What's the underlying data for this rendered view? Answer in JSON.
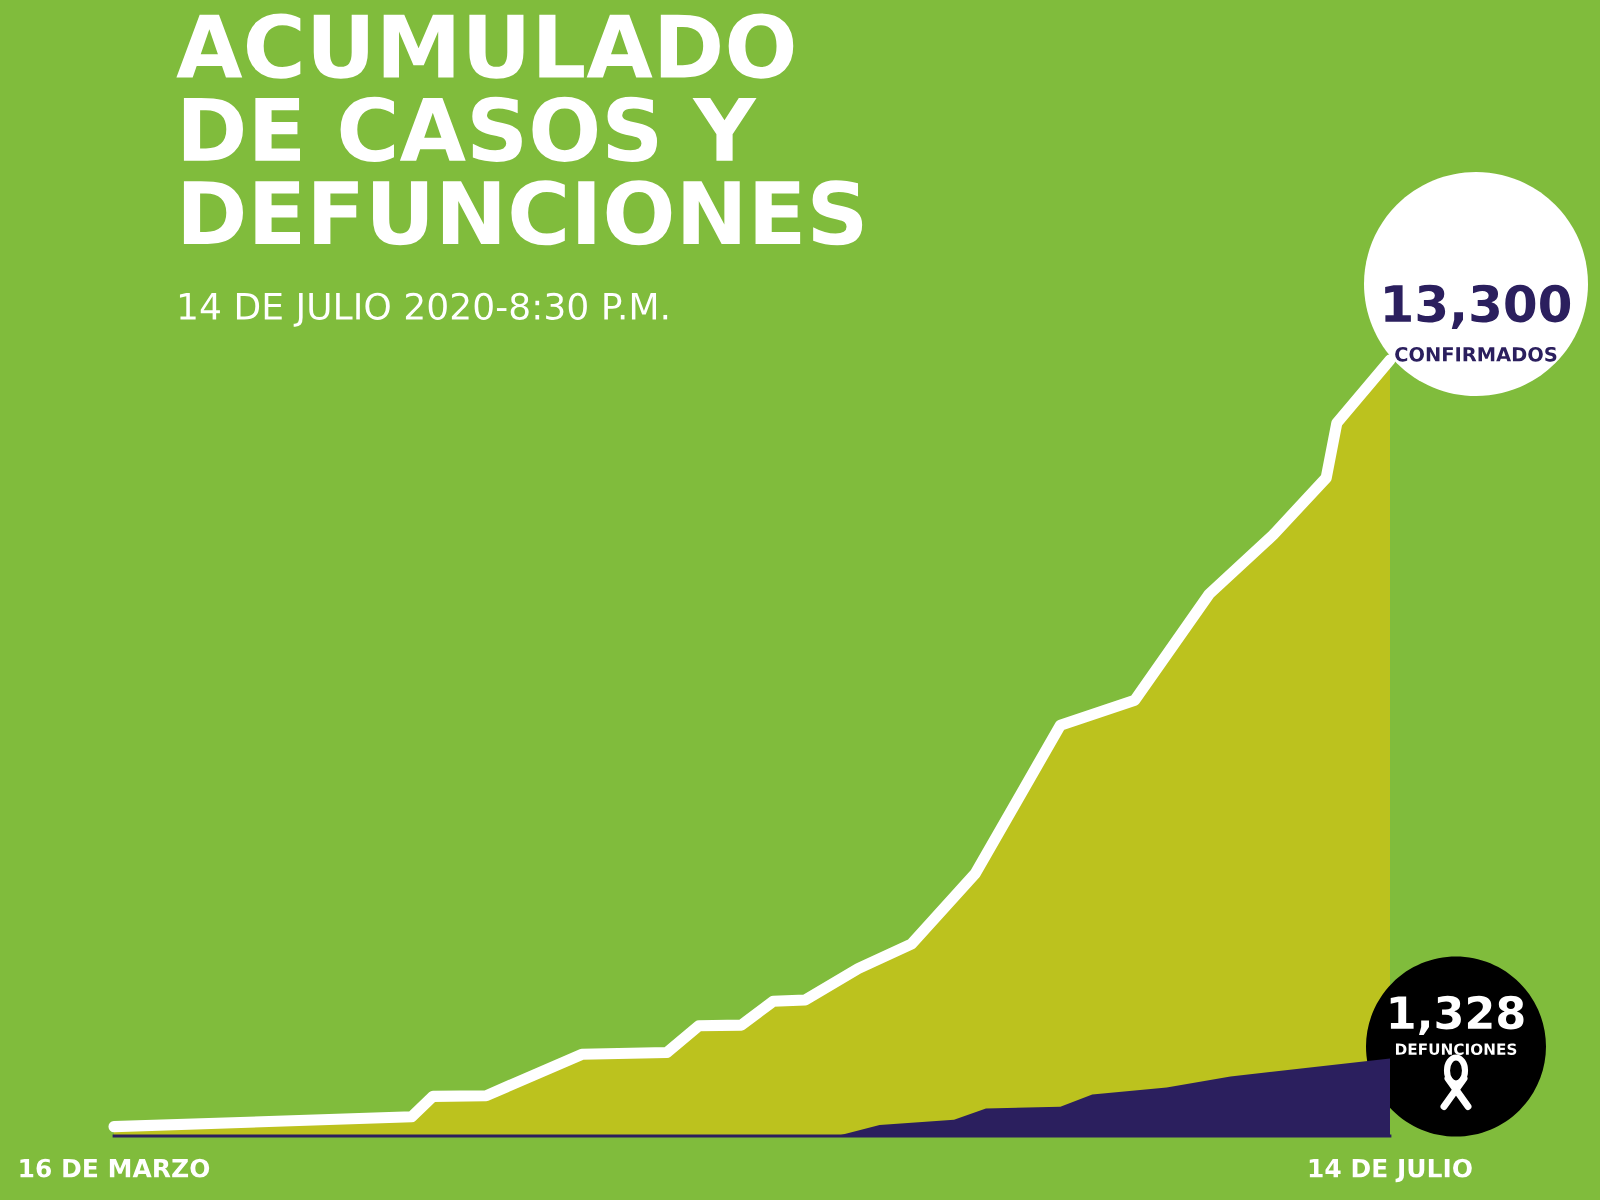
{
  "chart_data": {
    "type": "area",
    "title": "ACUMULADO DE CASOS Y DEFUNCIONES",
    "subtitle": "14 DE JULIO 2020-8:30 P.M.",
    "xlim": [
      "2020-03-16",
      "2020-07-14"
    ],
    "xticks": [
      {
        "value": "2020-03-16",
        "label": "16 DE MARZO"
      },
      {
        "value": "2020-07-14",
        "label": "14 DE JULIO"
      }
    ],
    "tick_labels": "x",
    "series": [
      {
        "name": "CONFIRMADOS",
        "color": "#bcc21e",
        "x": [
          "2020-03-16",
          "2020-04-13",
          "2020-04-15",
          "2020-04-20",
          "2020-04-29",
          "2020-05-07",
          "2020-05-10",
          "2020-05-14",
          "2020-05-17",
          "2020-05-20",
          "2020-05-25",
          "2020-05-30",
          "2020-06-05",
          "2020-06-13",
          "2020-06-20",
          "2020-06-27",
          "2020-07-03",
          "2020-07-08",
          "2020-07-09",
          "2020-07-14"
        ],
        "values": [
          160,
          330,
          680,
          690,
          1400,
          1430,
          1890,
          1900,
          2310,
          2330,
          2870,
          3290,
          4500,
          7040,
          7470,
          9290,
          10300,
          11280,
          12220,
          13300
        ],
        "value_labels": [
          null,
          null,
          null,
          null,
          null,
          null,
          null,
          null,
          null,
          null,
          null,
          null,
          null,
          null,
          null,
          null,
          null,
          null,
          null,
          "13,300"
        ]
      },
      {
        "name": "DEFUNCIONES",
        "color": "#2b1f5e",
        "x": [
          "2020-05-23",
          "2020-05-27",
          "2020-06-03",
          "2020-06-06",
          "2020-06-13",
          "2020-06-16",
          "2020-06-23",
          "2020-06-29",
          "2020-07-14"
        ],
        "values": [
          0,
          190,
          280,
          470,
          500,
          710,
          830,
          1020,
          1328
        ],
        "value_labels": [
          null,
          null,
          null,
          null,
          null,
          null,
          null,
          null,
          "1,328"
        ]
      }
    ]
  }
}
